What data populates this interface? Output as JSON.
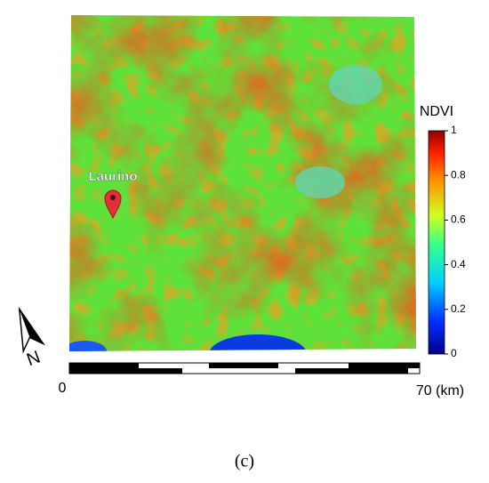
{
  "map": {
    "marker_label": "Laurino",
    "north_label": "N",
    "colorbar": {
      "label": "NDVI",
      "lim": [
        0,
        1
      ],
      "ticks": [
        0,
        0.2,
        0.4,
        0.6,
        0.8,
        1
      ]
    },
    "scalebar": {
      "start_label": "0",
      "end_label": "70 (km)"
    }
  },
  "caption": "(c)"
}
